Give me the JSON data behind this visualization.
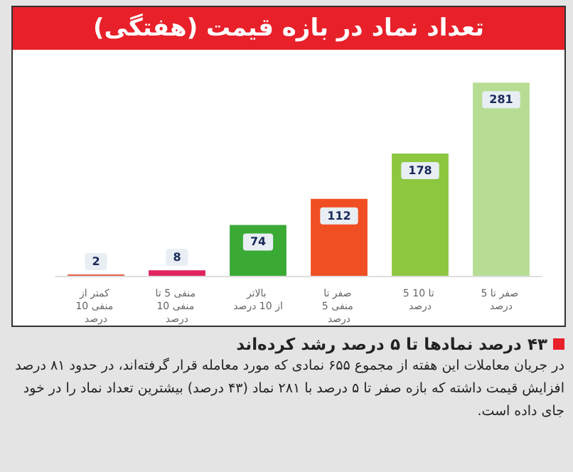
{
  "chart_data": {
    "type": "bar",
    "title": "تعداد نماد در بازه قیمت (هفتگی)",
    "categories": [
      "کمتر از منفی 10 درصد",
      "منفی 5 تا منفی 10 درصد",
      "بالاتر از 10 درصد",
      "صفر تا منفی 5 درصد",
      "5 تا 10 درصد",
      "صفر تا 5 درصد"
    ],
    "values": [
      2,
      8,
      74,
      112,
      178,
      281
    ],
    "colors": [
      "#e8604c",
      "#e0245e",
      "#3aaa35",
      "#f04e23",
      "#8dc63f",
      "#b7dd94"
    ],
    "data_labels": true,
    "annotations": [
      "۴۳ درصد نمادها تا ۵ درصد رشد کرده‌اند",
      "در جریان معاملات این هفته از مجموع ۶۵۵ نمادی که مورد معامله قرار گرفته‌اند، در حدود ۸۱ درصد افزایش قیمت داشته که بازه صفر تا ۵ درصد با ۲۸۱ نماد (۴۳ درصد) بیشترین تعداد نماد را در خود جای داده است."
    ]
  }
}
